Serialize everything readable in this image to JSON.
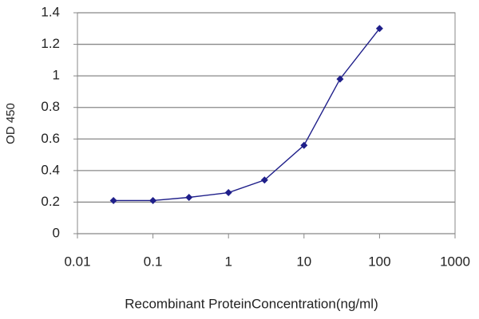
{
  "chart_data": {
    "type": "line",
    "xlabel": "Recombinant ProteinConcentration(ng/ml)",
    "ylabel": "OD 450",
    "x": [
      0.03,
      0.1,
      0.3,
      1,
      3,
      10,
      30,
      100
    ],
    "series": [
      {
        "color": "#1f1f8a",
        "values": [
          0.21,
          0.21,
          0.23,
          0.26,
          0.34,
          0.56,
          0.98,
          1.3
        ]
      }
    ],
    "xscale": "log",
    "xlim": [
      0.01,
      1000
    ],
    "xticks": [
      0.01,
      0.1,
      1,
      10,
      100,
      1000
    ],
    "ylim": [
      0,
      1.4
    ],
    "yticks": [
      0,
      0.2,
      0.4,
      0.6,
      0.8,
      1,
      1.2,
      1.4
    ],
    "grid": true
  }
}
